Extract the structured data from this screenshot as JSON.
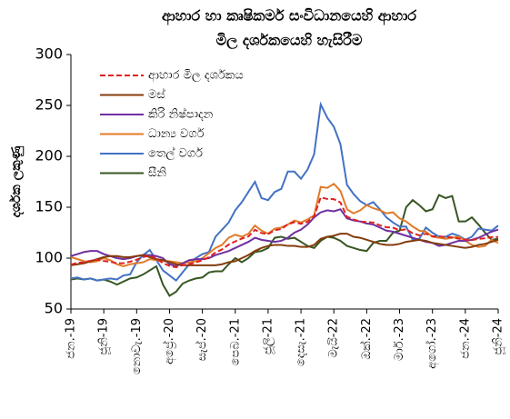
{
  "chart_data": {
    "type": "line",
    "title_lines": [
      "ආහාර හා කෘෂිකර්ම සංවිධානයෙහි ආහාර",
      "මිල දර්ශකයෙහි හැසිරීම"
    ],
    "y_label": "දර්ශක ලකුණු",
    "categories": [
      "ජන.-19",
      null,
      null,
      null,
      null,
      "ජූනි-19",
      null,
      null,
      null,
      null,
      "නොවැ.-19",
      null,
      null,
      null,
      null,
      "අප්‍රේ.-20",
      null,
      null,
      null,
      null,
      "සැප්.-20",
      null,
      null,
      null,
      null,
      "පෙබ.-21",
      null,
      null,
      null,
      null,
      "ජූලි-21",
      null,
      null,
      null,
      null,
      "දෙසැ.-21",
      null,
      null,
      null,
      null,
      "මැයි-22",
      null,
      null,
      null,
      null,
      "ඔක්.-22",
      null,
      null,
      null,
      null,
      "මාර්.-23",
      null,
      null,
      null,
      null,
      "අගෝ.-23",
      null,
      null,
      null,
      null,
      "ජන.-24",
      null,
      null,
      null,
      null,
      "ජූනි-24"
    ],
    "ylim": [
      50,
      300
    ],
    "yticks": [
      50,
      100,
      150,
      200,
      250,
      300
    ],
    "grid": false,
    "legend": "upper left",
    "series": [
      {
        "name": "ආහාර මිල දර්ශකය",
        "color": "#e02020",
        "dashed": true,
        "values": [
          93.6,
          95.5,
          95.8,
          97.5,
          98.4,
          97.2,
          96.4,
          95.0,
          95.0,
          96.5,
          98.5,
          101.1,
          102.5,
          99.4,
          95.1,
          92.4,
          91.0,
          93.1,
          94.0,
          95.9,
          97.8,
          101.0,
          105.5,
          108.6,
          113.3,
          116.4,
          119.2,
          121.3,
          127.8,
          124.6,
          123.6,
          127.4,
          128.5,
          133.2,
          135.3,
          133.7,
          135.6,
          141.1,
          159.7,
          158.1,
          157.9,
          154.7,
          140.6,
          138.0,
          136.0,
          135.4,
          135.0,
          132.2,
          130.4,
          129.9,
          127.4,
          128.3,
          124.4,
          122.4,
          124.0,
          121.4,
          121.5,
          120.6,
          120.4,
          119.1,
          118.3,
          117.7,
          118.9,
          119.5,
          120.6,
          120.8
        ]
      },
      {
        "name": "මස්",
        "color": "#843c0c",
        "values": [
          93,
          94,
          95,
          97,
          99,
          101,
          102,
          102,
          101,
          101,
          102,
          103,
          101,
          99,
          98,
          96,
          94,
          93,
          93,
          93,
          93,
          93,
          93,
          94,
          96,
          97,
          100,
          103,
          107,
          110,
          112,
          113,
          113,
          112,
          112,
          111,
          111,
          113,
          119,
          121,
          122,
          124,
          124,
          121,
          120,
          118,
          116,
          114,
          113,
          113,
          114,
          116,
          117,
          118,
          117,
          115,
          114,
          113,
          112,
          111,
          110,
          111,
          113,
          114,
          116,
          118
        ]
      },
      {
        "name": "කිරි නිෂ්පාදන",
        "color": "#7030a0",
        "values": [
          102,
          104,
          106,
          107,
          107,
          104,
          102,
          100,
          99,
          100,
          102,
          103,
          103,
          102,
          100,
          94,
          92,
          95,
          98,
          99,
          99,
          100,
          103,
          105,
          107,
          110,
          113,
          116,
          120,
          118,
          117,
          116,
          117,
          120,
          125,
          128,
          133,
          140,
          145,
          147,
          146,
          148,
          139,
          137,
          136,
          134,
          133,
          130,
          127,
          126,
          124,
          122,
          120,
          118,
          116,
          115,
          112,
          113,
          115,
          117,
          117,
          118,
          120,
          123,
          126,
          128
        ]
      },
      {
        "name": "ධාන්‍ය වර්ග",
        "color": "#e07b2a",
        "values": [
          101,
          99,
          97,
          96,
          97,
          100,
          98,
          94,
          92,
          94,
          95,
          96,
          99,
          98,
          97,
          97,
          96,
          95,
          96,
          97,
          100,
          105,
          110,
          113,
          120,
          123,
          121,
          124,
          132,
          127,
          124,
          129,
          130,
          133,
          137,
          135,
          138,
          142,
          170,
          169,
          173,
          166,
          148,
          144,
          147,
          152,
          149,
          147,
          144,
          145,
          139,
          136,
          131,
          127,
          126,
          121,
          120,
          119,
          120,
          121,
          117,
          113,
          111,
          112,
          118,
          115
        ]
      },
      {
        "name": "තෙල් වර්ග",
        "color": "#4472c4",
        "values": [
          80,
          81,
          79,
          80,
          78,
          79,
          80,
          79,
          83,
          84,
          96,
          103,
          108,
          98,
          88,
          83,
          78,
          86,
          94,
          100,
          104,
          106,
          121,
          128,
          135,
          147,
          155,
          165,
          175,
          159,
          157,
          165,
          168,
          185,
          185,
          178,
          187,
          202,
          251,
          238,
          229,
          212,
          172,
          163,
          156,
          152,
          155,
          148,
          140,
          135,
          131,
          131,
          118,
          119,
          130,
          125,
          121,
          121,
          124,
          122,
          118,
          121,
          129,
          128,
          127,
          132
        ]
      },
      {
        "name": "සීනි",
        "color": "#375623",
        "values": [
          79,
          80,
          79,
          80,
          78,
          79,
          77,
          74,
          77,
          80,
          81,
          84,
          88,
          92,
          74,
          63,
          67,
          75,
          78,
          80,
          81,
          86,
          87,
          87,
          94,
          100,
          96,
          100,
          106,
          107,
          110,
          120,
          121,
          119,
          120,
          116,
          112,
          110,
          117,
          121,
          120,
          117,
          112,
          110,
          108,
          107,
          115,
          117,
          117,
          125,
          127,
          150,
          157,
          152,
          146,
          148,
          162,
          159,
          161,
          136,
          136,
          140,
          133,
          125,
          118,
          119
        ]
      }
    ]
  }
}
